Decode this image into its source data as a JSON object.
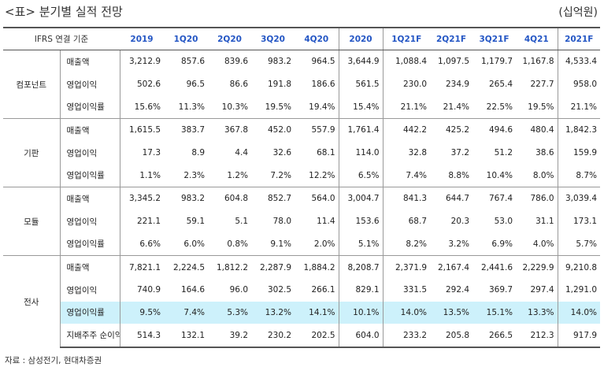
{
  "header": {
    "title": "<표> 분기별 실적 전망",
    "unit": "(십억원)"
  },
  "table": {
    "columns": [
      "IFRS 연결 기준",
      "2019",
      "1Q20",
      "2Q20",
      "3Q20",
      "4Q20",
      "2020",
      "1Q21F",
      "2Q21F",
      "3Q21F",
      "4Q21",
      "2021F"
    ],
    "groups": [
      {
        "label": "컴포넌트",
        "rows": [
          {
            "label": "매출액",
            "values": [
              "3,212.9",
              "857.6",
              "839.6",
              "983.2",
              "964.5",
              "3,644.9",
              "1,088.4",
              "1,097.5",
              "1,179.7",
              "1,167.8",
              "4,533.4"
            ]
          },
          {
            "label": "영업이익",
            "values": [
              "502.6",
              "96.5",
              "86.6",
              "191.8",
              "186.6",
              "561.5",
              "230.0",
              "234.9",
              "265.4",
              "227.7",
              "958.0"
            ]
          },
          {
            "label": "영업이익률",
            "values": [
              "15.6%",
              "11.3%",
              "10.3%",
              "19.5%",
              "19.4%",
              "15.4%",
              "21.1%",
              "21.4%",
              "22.5%",
              "19.5%",
              "21.1%"
            ]
          }
        ]
      },
      {
        "label": "기판",
        "rows": [
          {
            "label": "매출액",
            "values": [
              "1,615.5",
              "383.7",
              "367.8",
              "452.0",
              "557.9",
              "1,761.4",
              "442.2",
              "425.2",
              "494.6",
              "480.4",
              "1,842.3"
            ]
          },
          {
            "label": "영업이익",
            "values": [
              "17.3",
              "8.9",
              "4.4",
              "32.6",
              "68.1",
              "114.0",
              "32.8",
              "37.2",
              "51.2",
              "38.6",
              "159.9"
            ]
          },
          {
            "label": "영업이익률",
            "values": [
              "1.1%",
              "2.3%",
              "1.2%",
              "7.2%",
              "12.2%",
              "6.5%",
              "7.4%",
              "8.8%",
              "10.4%",
              "8.0%",
              "8.7%"
            ]
          }
        ]
      },
      {
        "label": "모듈",
        "rows": [
          {
            "label": "매출액",
            "values": [
              "3,345.2",
              "983.2",
              "604.8",
              "852.7",
              "564.0",
              "3,004.7",
              "841.3",
              "644.7",
              "767.4",
              "786.0",
              "3,039.4"
            ]
          },
          {
            "label": "영업이익",
            "values": [
              "221.1",
              "59.1",
              "5.1",
              "78.0",
              "11.4",
              "153.6",
              "68.7",
              "20.3",
              "53.0",
              "31.1",
              "173.1"
            ]
          },
          {
            "label": "영업이익률",
            "values": [
              "6.6%",
              "6.0%",
              "0.8%",
              "9.1%",
              "2.0%",
              "5.1%",
              "8.2%",
              "3.2%",
              "6.9%",
              "4.0%",
              "5.7%"
            ]
          }
        ]
      },
      {
        "label": "전사",
        "rows": [
          {
            "label": "매출액",
            "values": [
              "7,821.1",
              "2,224.5",
              "1,812.2",
              "2,287.9",
              "1,884.2",
              "8,208.7",
              "2,371.9",
              "2,167.4",
              "2,441.6",
              "2,229.9",
              "9,210.8"
            ]
          },
          {
            "label": "영업이익",
            "values": [
              "740.9",
              "164.6",
              "96.0",
              "302.5",
              "266.1",
              "829.1",
              "331.5",
              "292.4",
              "369.7",
              "297.4",
              "1,291.0"
            ]
          },
          {
            "label": "영업이익률",
            "color": "#cdf1fb",
            "values": [
              "9.5%",
              "7.4%",
              "5.3%",
              "13.2%",
              "14.1%",
              "10.1%",
              "14.0%",
              "13.5%",
              "15.1%",
              "13.3%",
              "14.0%"
            ]
          },
          {
            "label": "지배주주 순이익",
            "values": [
              "514.3",
              "132.1",
              "39.2",
              "230.2",
              "202.5",
              "604.0",
              "233.2",
              "205.8",
              "266.5",
              "212.3",
              "917.9"
            ]
          }
        ]
      }
    ]
  },
  "source": "자료 : 삼성전기, 현대차증권"
}
